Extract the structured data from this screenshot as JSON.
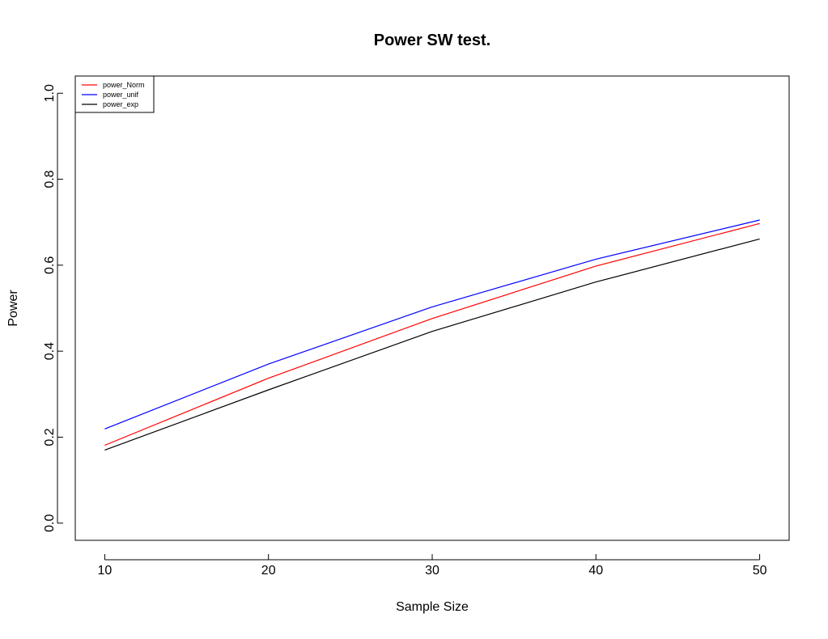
{
  "chart_data": {
    "type": "line",
    "title": "Power SW test.",
    "xlabel": "Sample Size",
    "ylabel": "Power",
    "x": [
      10,
      20,
      30,
      40,
      50
    ],
    "xticks": [
      "10",
      "20",
      "30",
      "40",
      "50"
    ],
    "yticks": [
      "0.0",
      "0.2",
      "0.4",
      "0.6",
      "0.8",
      "1.0"
    ],
    "xlim": [
      8.2,
      51.8
    ],
    "ylim": [
      -0.04,
      1.04
    ],
    "grid": false,
    "legend_position": "top-left",
    "series": [
      {
        "name": "power_Norm",
        "color": "#ff0000",
        "values": [
          0.181,
          0.337,
          0.476,
          0.598,
          0.697
        ]
      },
      {
        "name": "power_unif",
        "color": "#0000ff",
        "values": [
          0.219,
          0.37,
          0.503,
          0.614,
          0.705
        ]
      },
      {
        "name": "power_exp",
        "color": "#000000",
        "values": [
          0.17,
          0.31,
          0.446,
          0.561,
          0.661
        ]
      }
    ]
  }
}
